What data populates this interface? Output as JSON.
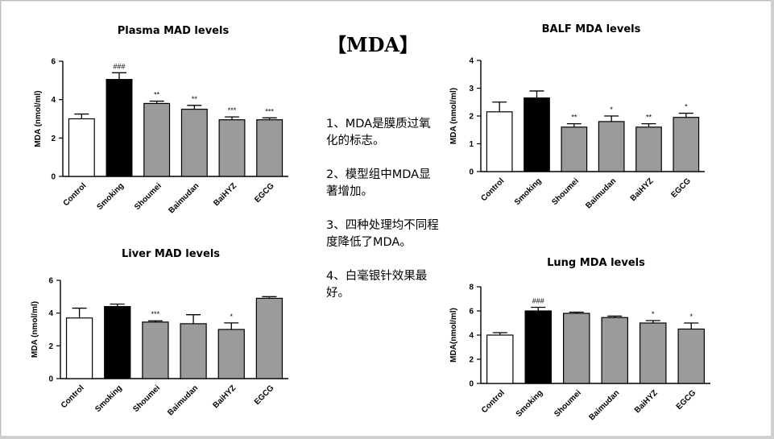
{
  "heading": "【MDA】",
  "notes": [
    "1、MDA是膜质过氧化的标志。",
    "2、模型组中MDA显著增加。",
    "3、四种处理均不同程度降低了MDA。",
    "4、白毫银针效果最好。"
  ],
  "colors": {
    "control": "#ffffff",
    "smoking": "#000000",
    "treatment": "#9b9b9b"
  },
  "chart_data": [
    {
      "id": "plasma",
      "type": "bar",
      "title": "Plasma MAD levels",
      "ylabel": "MDA (nmol/ml)",
      "ylim": [
        0,
        6
      ],
      "yticks": [
        "0",
        "2",
        "4",
        "6"
      ],
      "categories": [
        "Control",
        "Smoking",
        "Shoumei",
        "Baimudan",
        "BaiHYZ",
        "EGCG"
      ],
      "values": [
        3.0,
        5.05,
        3.8,
        3.5,
        2.95,
        2.95
      ],
      "errors": [
        0.25,
        0.35,
        0.12,
        0.2,
        0.15,
        0.1
      ],
      "significance": [
        "",
        "###",
        "**",
        "**",
        "***",
        "***"
      ]
    },
    {
      "id": "balf",
      "type": "bar",
      "title": "BALF MDA levels",
      "ylabel": "MDA (nmol/ml)",
      "ylim": [
        0,
        4
      ],
      "yticks": [
        "0",
        "1",
        "2",
        "3",
        "4"
      ],
      "categories": [
        "Control",
        "Smoking",
        "Shoumei",
        "Baimudan",
        "BaiHYZ",
        "EGCG"
      ],
      "values": [
        2.15,
        2.65,
        1.6,
        1.8,
        1.6,
        1.95
      ],
      "errors": [
        0.35,
        0.25,
        0.12,
        0.2,
        0.12,
        0.15
      ],
      "significance": [
        "",
        "",
        "**",
        "*",
        "**",
        "*"
      ]
    },
    {
      "id": "liver",
      "type": "bar",
      "title": "Liver MAD levels",
      "ylabel": "MDA (nmol/ml)",
      "ylim": [
        0,
        6
      ],
      "yticks": [
        "0",
        "2",
        "4",
        "6"
      ],
      "categories": [
        "Control",
        "Smoking",
        "Shoumei",
        "Baimudan",
        "BaiHYZ",
        "EGCG"
      ],
      "values": [
        3.7,
        4.4,
        3.45,
        3.35,
        3.0,
        4.9
      ],
      "errors": [
        0.6,
        0.15,
        0.08,
        0.55,
        0.4,
        0.1
      ],
      "significance": [
        "",
        "",
        "***",
        "",
        "*",
        ""
      ]
    },
    {
      "id": "lung",
      "type": "bar",
      "title": "Lung MDA levels",
      "ylabel": "MDA(nmol/ml)",
      "ylim": [
        0,
        8
      ],
      "yticks": [
        "0",
        "2",
        "4",
        "6",
        "8"
      ],
      "categories": [
        "Control",
        "Smoking",
        "Shoumei",
        "Baimudan",
        "BaiHYZ",
        "EGCG"
      ],
      "values": [
        4.0,
        6.0,
        5.8,
        5.45,
        5.0,
        4.5
      ],
      "errors": [
        0.2,
        0.3,
        0.1,
        0.12,
        0.2,
        0.5
      ],
      "significance": [
        "",
        "###",
        "",
        "",
        "*",
        "*"
      ]
    }
  ]
}
